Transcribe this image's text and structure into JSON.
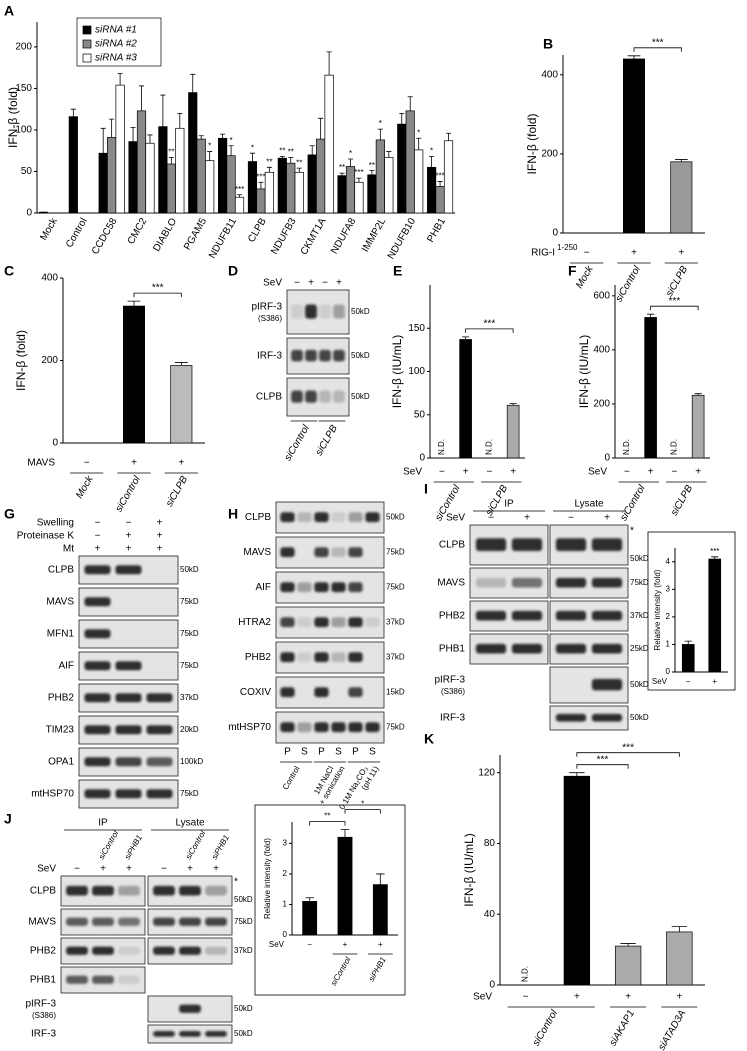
{
  "panel_labels": [
    "A",
    "B",
    "C",
    "D",
    "E",
    "F",
    "G",
    "H",
    "I",
    "J",
    "K"
  ],
  "chart_data": [
    {
      "type": "bar",
      "ylabel": "IFN-β (fold)",
      "legend": "upper left",
      "categories": [
        "Mock",
        "Control",
        "CCDC58",
        "CMC2",
        "DIABLO",
        "PGAM5",
        "NDUFB11",
        "CLPB",
        "NDUFB3",
        "CKMT1A",
        "NDUFA8",
        "IMMP2L",
        "NDUFB10",
        "PHB1"
      ],
      "series": [
        {
          "name": "siRNA #1",
          "color": "#000000",
          "values": [
            1,
            116,
            72,
            86,
            104,
            145,
            90,
            62,
            66,
            70,
            45,
            46,
            107,
            55
          ],
          "errors": [
            0,
            9,
            30,
            17,
            38,
            22,
            5,
            10,
            2,
            11,
            3,
            5,
            13,
            13
          ],
          "stars": [
            null,
            null,
            null,
            null,
            null,
            null,
            null,
            "*",
            "**",
            null,
            "**",
            "**",
            null,
            "*"
          ]
        },
        {
          "name": "siRNA #2",
          "color": "#888888",
          "values": [
            null,
            null,
            91,
            123,
            59,
            89,
            69,
            29,
            60,
            89,
            56,
            88,
            123,
            32
          ],
          "errors": [
            null,
            null,
            22,
            30,
            8,
            4,
            12,
            8,
            7,
            25,
            9,
            13,
            17,
            6
          ],
          "stars": [
            null,
            null,
            null,
            null,
            "**",
            null,
            "*",
            "***",
            "**",
            null,
            "*",
            "*",
            null,
            "***"
          ]
        },
        {
          "name": "siRNA #3",
          "color": "#ffffff",
          "values": [
            null,
            null,
            154,
            84,
            102,
            63,
            19,
            49,
            49,
            166,
            37,
            67,
            76,
            87
          ],
          "errors": [
            null,
            null,
            14,
            10,
            18,
            11,
            3,
            6,
            5,
            28,
            5,
            7,
            14,
            9
          ],
          "stars": [
            null,
            null,
            null,
            null,
            null,
            "*",
            "***",
            "**",
            "**",
            null,
            "***",
            null,
            "*",
            null
          ]
        }
      ],
      "ylim": [
        0,
        230
      ],
      "yticks": [
        0,
        50,
        100,
        150,
        200
      ]
    },
    {
      "type": "bar",
      "ylabel": "IFN-β (fold)",
      "values": [
        0,
        440,
        180
      ],
      "errors": [
        null,
        8,
        6
      ],
      "colors": [
        "#000000",
        "#000000",
        "#999999"
      ],
      "conditions": [
        {
          "label": "RIG-I",
          "sup": "1-250",
          "signs": [
            "−",
            "+",
            "+"
          ]
        }
      ],
      "groups": [
        {
          "label": "Mock",
          "span": [
            0,
            0
          ]
        },
        {
          "label": "siControl",
          "span": [
            1,
            1
          ]
        },
        {
          "label": "siCLPB",
          "span": [
            2,
            2
          ]
        }
      ],
      "brackets": [
        {
          "text": "***",
          "span": [
            1,
            2
          ]
        }
      ],
      "ylim": [
        0,
        450
      ],
      "yticks": [
        0,
        200,
        400
      ]
    },
    {
      "type": "bar",
      "ylabel": "IFN-β (fold)",
      "values": [
        0,
        332,
        188
      ],
      "errors": [
        null,
        12,
        7
      ],
      "colors": [
        "#000000",
        "#000000",
        "#bbbbbb"
      ],
      "conditions": [
        {
          "label": "MAVS",
          "signs": [
            "−",
            "+",
            "+"
          ]
        }
      ],
      "groups": [
        {
          "label": "Mock",
          "span": [
            0,
            0
          ]
        },
        {
          "label": "siControl",
          "span": [
            1,
            1
          ]
        },
        {
          "label": "siCLPB",
          "span": [
            2,
            2
          ]
        }
      ],
      "brackets": [
        {
          "text": "***",
          "span": [
            1,
            2
          ]
        }
      ],
      "ylim": [
        0,
        400
      ],
      "yticks": [
        0,
        200,
        400
      ]
    },
    {
      "type": "bar",
      "ylabel": "IFN-β (IU/mL)",
      "values": [
        null,
        137,
        null,
        61
      ],
      "errors": [
        null,
        3,
        null,
        2
      ],
      "value_labels": [
        "N.D.",
        null,
        "N.D.",
        null
      ],
      "colors": [
        "#000000",
        "#000000",
        "#aaaaaa",
        "#aaaaaa"
      ],
      "conditions": [
        {
          "label": "SeV",
          "signs": [
            "−",
            "+",
            "−",
            "+"
          ]
        }
      ],
      "groups": [
        {
          "label": "siControl",
          "span": [
            0,
            1
          ]
        },
        {
          "label": "siCLPB",
          "span": [
            2,
            3
          ]
        }
      ],
      "brackets": [
        {
          "text": "***",
          "span": [
            1,
            3
          ]
        }
      ],
      "ylim": [
        0,
        200
      ],
      "yticks": [
        0,
        50,
        100,
        150
      ]
    },
    {
      "type": "bar",
      "ylabel": "IFN-β (IU/mL)",
      "values": [
        null,
        520,
        null,
        232
      ],
      "errors": [
        null,
        12,
        null,
        6
      ],
      "value_labels": [
        "N.D.",
        null,
        "N.D.",
        null
      ],
      "colors": [
        "#000000",
        "#000000",
        "#aaaaaa",
        "#aaaaaa"
      ],
      "conditions": [
        {
          "label": "SeV",
          "signs": [
            "−",
            "+",
            "−",
            "+"
          ]
        }
      ],
      "groups": [
        {
          "label": "siControl",
          "span": [
            0,
            1
          ]
        },
        {
          "label": "siCLPB",
          "span": [
            2,
            3
          ]
        }
      ],
      "brackets": [
        {
          "text": "***",
          "span": [
            1,
            3
          ]
        }
      ],
      "ylim": [
        0,
        640
      ],
      "yticks": [
        0,
        200,
        400,
        600
      ]
    },
    {
      "type": "bar",
      "ylabel": "Relative intensity (fold)",
      "values": [
        1.0,
        4.1
      ],
      "errors": [
        0.12,
        0.08
      ],
      "colors": [
        "#000000",
        "#000000"
      ],
      "stars": [
        null,
        "***"
      ],
      "conditions": [
        {
          "label": "SeV",
          "signs": [
            "−",
            "+"
          ]
        }
      ],
      "ylim": [
        0,
        4.5
      ],
      "yticks": [
        0,
        1,
        2,
        3,
        4
      ]
    },
    {
      "type": "bar",
      "ylabel": "Relative intensity (fold)",
      "values": [
        1.1,
        3.2,
        1.65
      ],
      "errors": [
        0.12,
        0.25,
        0.35
      ],
      "colors": [
        "#000000",
        "#000000",
        "#000000"
      ],
      "conditions": [
        {
          "label": "SeV",
          "signs": [
            "−",
            "+",
            "+"
          ]
        }
      ],
      "groups": [
        {
          "label": "siControl",
          "span": [
            1,
            1
          ]
        },
        {
          "label": "siPHB1",
          "span": [
            2,
            2
          ]
        }
      ],
      "brackets": [
        {
          "text": "**",
          "span": [
            0,
            1
          ]
        },
        {
          "text": "*",
          "span": [
            1,
            2
          ]
        }
      ],
      "ylim": [
        0,
        3.7
      ],
      "yticks": [
        0,
        1,
        2,
        3
      ]
    },
    {
      "type": "bar",
      "ylabel": "IFN-β (IU/mL)",
      "values": [
        null,
        118,
        22,
        30
      ],
      "errors": [
        null,
        2,
        1.5,
        3
      ],
      "value_labels": [
        "N.D.",
        null,
        null,
        null
      ],
      "colors": [
        "#000000",
        "#000000",
        "#aaaaaa",
        "#aaaaaa"
      ],
      "conditions": [
        {
          "label": "SeV",
          "signs": [
            "−",
            "+",
            "+",
            "+"
          ]
        }
      ],
      "groups": [
        {
          "label": "siControl",
          "span": [
            0,
            1
          ]
        },
        {
          "label": "siAKAP1",
          "span": [
            2,
            2
          ]
        },
        {
          "label": "siATAD3A",
          "span": [
            3,
            3
          ]
        }
      ],
      "brackets": [
        {
          "text": "***",
          "span": [
            1,
            2
          ]
        },
        {
          "text": "***",
          "span": [
            1,
            3
          ]
        }
      ],
      "ylim": [
        0,
        130
      ],
      "yticks": [
        0,
        40,
        80,
        120
      ]
    }
  ],
  "blots": {
    "D": {
      "header_rows": [
        {
          "label": "SeV",
          "signs": [
            "−",
            "+",
            "−",
            "+"
          ]
        }
      ],
      "rows": [
        {
          "label": "pIRF-3",
          "sub": "(S386)",
          "marker": "50kD"
        },
        {
          "label": "IRF-3",
          "marker": "50kD"
        },
        {
          "label": "CLPB",
          "marker": "50kD"
        }
      ],
      "groups": [
        {
          "label": "siControl",
          "span": [
            0,
            1
          ]
        },
        {
          "label": "siCLPB",
          "span": [
            2,
            3
          ]
        }
      ]
    },
    "G": {
      "header_rows": [
        {
          "label": "Swelling",
          "signs": [
            "−",
            "−",
            "+"
          ]
        },
        {
          "label": "Proteinase K",
          "signs": [
            "−",
            "+",
            "+"
          ]
        },
        {
          "label": "Mt",
          "signs": [
            "+",
            "+",
            "+"
          ]
        }
      ],
      "rows": [
        {
          "label": "CLPB",
          "marker": "50kD"
        },
        {
          "label": "MAVS",
          "marker": "75kD"
        },
        {
          "label": "MFN1",
          "marker": "75kD"
        },
        {
          "label": "AIF",
          "marker": "75kD"
        },
        {
          "label": "PHB2",
          "marker": "37kD"
        },
        {
          "label": "TIM23",
          "marker": "20kD"
        },
        {
          "label": "OPA1",
          "marker": "100kD"
        },
        {
          "label": "mtHSP70",
          "marker": "75kD"
        }
      ]
    },
    "H": {
      "header_rows": [],
      "rows": [
        {
          "label": "CLPB",
          "marker": "50kD"
        },
        {
          "label": "MAVS",
          "marker": "75kD"
        },
        {
          "label": "AIF",
          "marker": "75kD"
        },
        {
          "label": "HTRA2",
          "marker": "37kD"
        },
        {
          "label": "PHB2",
          "marker": "37kD"
        },
        {
          "label": "COXIV",
          "marker": "15kD"
        },
        {
          "label": "mtHSP70",
          "marker": "75kD"
        }
      ],
      "bottom_lanes": [
        "P",
        "S",
        "P",
        "S",
        "P",
        "S"
      ],
      "groups": [
        {
          "label": [
            "Control"
          ],
          "span": [
            0,
            1
          ]
        },
        {
          "label": [
            "1M NaCl",
            "+ sonication"
          ],
          "span": [
            2,
            3
          ]
        },
        {
          "label": [
            "0.1M Na₂CO₃",
            "(pH 11)"
          ],
          "span": [
            4,
            5
          ]
        }
      ]
    },
    "I": {
      "sections": [
        {
          "title": "IP"
        },
        {
          "title": "Lysate"
        }
      ],
      "header_rows": [
        {
          "label": "SeV",
          "signs": [
            "−",
            "+",
            "−",
            "+"
          ]
        }
      ],
      "rows": [
        {
          "label": "CLPB",
          "marker": "50kD",
          "star": "*"
        },
        {
          "label": "MAVS",
          "marker": "75kD"
        },
        {
          "label": "PHB2",
          "marker": "37kD"
        },
        {
          "label": "PHB1",
          "marker": "25kD"
        },
        {
          "label": "pIRF-3",
          "sub": "(S386)",
          "marker": "50kD"
        },
        {
          "label": "IRF-3",
          "marker": "50kD"
        }
      ]
    },
    "J": {
      "sections": [
        {
          "title": "IP"
        },
        {
          "title": "Lysate"
        }
      ],
      "lane_labels": [
        null,
        "siControl",
        "siPHB1",
        null,
        "siControl",
        "siPHB1"
      ],
      "header_rows": [
        {
          "label": "SeV",
          "signs": [
            "−",
            "+",
            "+",
            "−",
            "+",
            "+"
          ]
        }
      ],
      "rows": [
        {
          "label": "CLPB",
          "marker": "50kD",
          "star": "*"
        },
        {
          "label": "MAVS",
          "marker": "75kD"
        },
        {
          "label": "PHB2",
          "marker": "37kD"
        },
        {
          "label": "PHB1"
        },
        {
          "label": "pIRF-3",
          "sub": "(S386)",
          "marker": "50kD"
        },
        {
          "label": "IRF-3",
          "marker": "50kD"
        }
      ]
    }
  }
}
